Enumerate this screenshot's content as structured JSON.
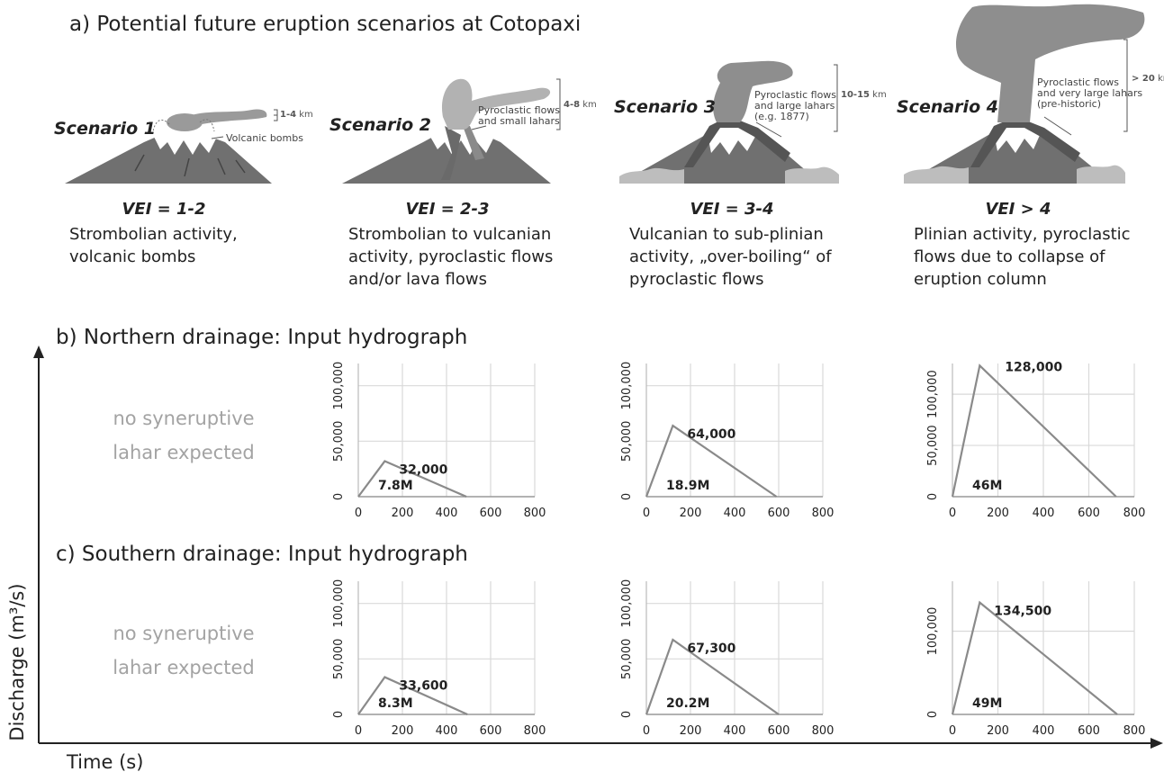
{
  "section_a": {
    "title": "a) Potential future eruption scenarios at Cotopaxi",
    "scenarios": [
      {
        "label": "Scenario 1",
        "height": "1-4",
        "height_unit": "km",
        "callout": "Volcanic bombs",
        "vei": "VEI = 1-2",
        "description": "Strombolian activity,\nvolcanic bombs"
      },
      {
        "label": "Scenario 2",
        "height": "4-8",
        "height_unit": "km",
        "callout": "Pyroclastic flows\nand small lahars",
        "vei": "VEI = 2-3",
        "description": "Strombolian to vulcanian\nactivity, pyroclastic flows\nand/or lava flows"
      },
      {
        "label": "Scenario 3",
        "height": "10-15",
        "height_unit": "km",
        "callout": "Pyroclastic flows\nand large lahars\n(e.g. 1877)",
        "vei": "VEI = 3-4",
        "description": "Vulcanian to sub-plinian\nactivity, „over-boiling“ of\npyroclastic flows"
      },
      {
        "label": "Scenario 4",
        "height": "> 20",
        "height_unit": "km",
        "callout": "Pyroclastic flows\nand very large lahars\n(pre-historic)",
        "vei": "VEI > 4",
        "description": "Plinian activity, pyroclastic\nflows due to collapse of\neruption column"
      }
    ]
  },
  "section_b": {
    "title": "b) Northern drainage: Input hydrograph",
    "no_lahar": "no syneruptive\nlahar expected"
  },
  "section_c": {
    "title": "c) Southern drainage: Input hydrograph",
    "no_lahar": "no syneruptive\nlahar expected"
  },
  "axes": {
    "y_label": "Discharge (m³/s)",
    "x_label": "Time (s)"
  },
  "colors": {
    "volcano": "#6e6e6e",
    "plume": "#9a9a9a",
    "line": "#8a8a8a",
    "grid": "#d9d9d9"
  },
  "chart_data": [
    {
      "type": "line",
      "panel": "b-scenario-2",
      "x": [
        0,
        120,
        490
      ],
      "y": [
        0,
        32000,
        0
      ],
      "peak_label": "32,000",
      "volume_label": "7.8M",
      "xlim": [
        0,
        800
      ],
      "ylim": [
        0,
        120000
      ],
      "xticks": [
        0,
        200,
        400,
        600,
        800
      ],
      "yticks": [
        0,
        50000,
        100000
      ],
      "ytick_labels": [
        "0",
        "50,000",
        "100,000"
      ],
      "grid": true
    },
    {
      "type": "line",
      "panel": "b-scenario-3",
      "x": [
        0,
        120,
        590
      ],
      "y": [
        0,
        64000,
        0
      ],
      "peak_label": "64,000",
      "volume_label": "18.9M",
      "xlim": [
        0,
        800
      ],
      "ylim": [
        0,
        120000
      ],
      "xticks": [
        0,
        200,
        400,
        600,
        800
      ],
      "yticks": [
        0,
        50000,
        100000
      ],
      "ytick_labels": [
        "0",
        "50,000",
        "100,000"
      ],
      "grid": true
    },
    {
      "type": "line",
      "panel": "b-scenario-4",
      "x": [
        0,
        120,
        720
      ],
      "y": [
        0,
        128000,
        0
      ],
      "peak_label": "128,000",
      "volume_label": "46M",
      "xlim": [
        0,
        800
      ],
      "ylim": [
        0,
        130000
      ],
      "xticks": [
        0,
        200,
        400,
        600,
        800
      ],
      "yticks": [
        0,
        50000,
        100000
      ],
      "ytick_labels": [
        "0",
        "50,000",
        "100,000"
      ],
      "grid": true
    },
    {
      "type": "line",
      "panel": "c-scenario-2",
      "x": [
        0,
        120,
        495
      ],
      "y": [
        0,
        33600,
        0
      ],
      "peak_label": "33,600",
      "volume_label": "8.3M",
      "xlim": [
        0,
        800
      ],
      "ylim": [
        0,
        120000
      ],
      "xticks": [
        0,
        200,
        400,
        600,
        800
      ],
      "yticks": [
        0,
        50000,
        100000
      ],
      "ytick_labels": [
        "0",
        "50,000",
        "100,000"
      ],
      "grid": true
    },
    {
      "type": "line",
      "panel": "c-scenario-3",
      "x": [
        0,
        120,
        600
      ],
      "y": [
        0,
        67300,
        0
      ],
      "peak_label": "67,300",
      "volume_label": "20.2M",
      "xlim": [
        0,
        800
      ],
      "ylim": [
        0,
        120000
      ],
      "xticks": [
        0,
        200,
        400,
        600,
        800
      ],
      "yticks": [
        0,
        50000,
        100000
      ],
      "ytick_labels": [
        "0",
        "50,000",
        "100,000"
      ],
      "grid": true
    },
    {
      "type": "line",
      "panel": "c-scenario-4",
      "x": [
        0,
        120,
        725
      ],
      "y": [
        0,
        134500,
        0
      ],
      "peak_label": "134,500",
      "volume_label": "49M",
      "xlim": [
        0,
        800
      ],
      "ylim": [
        0,
        160000
      ],
      "xticks": [
        0,
        200,
        400,
        600,
        800
      ],
      "yticks": [
        0,
        100000
      ],
      "ytick_labels": [
        "0",
        "100,000"
      ],
      "grid": true
    }
  ]
}
